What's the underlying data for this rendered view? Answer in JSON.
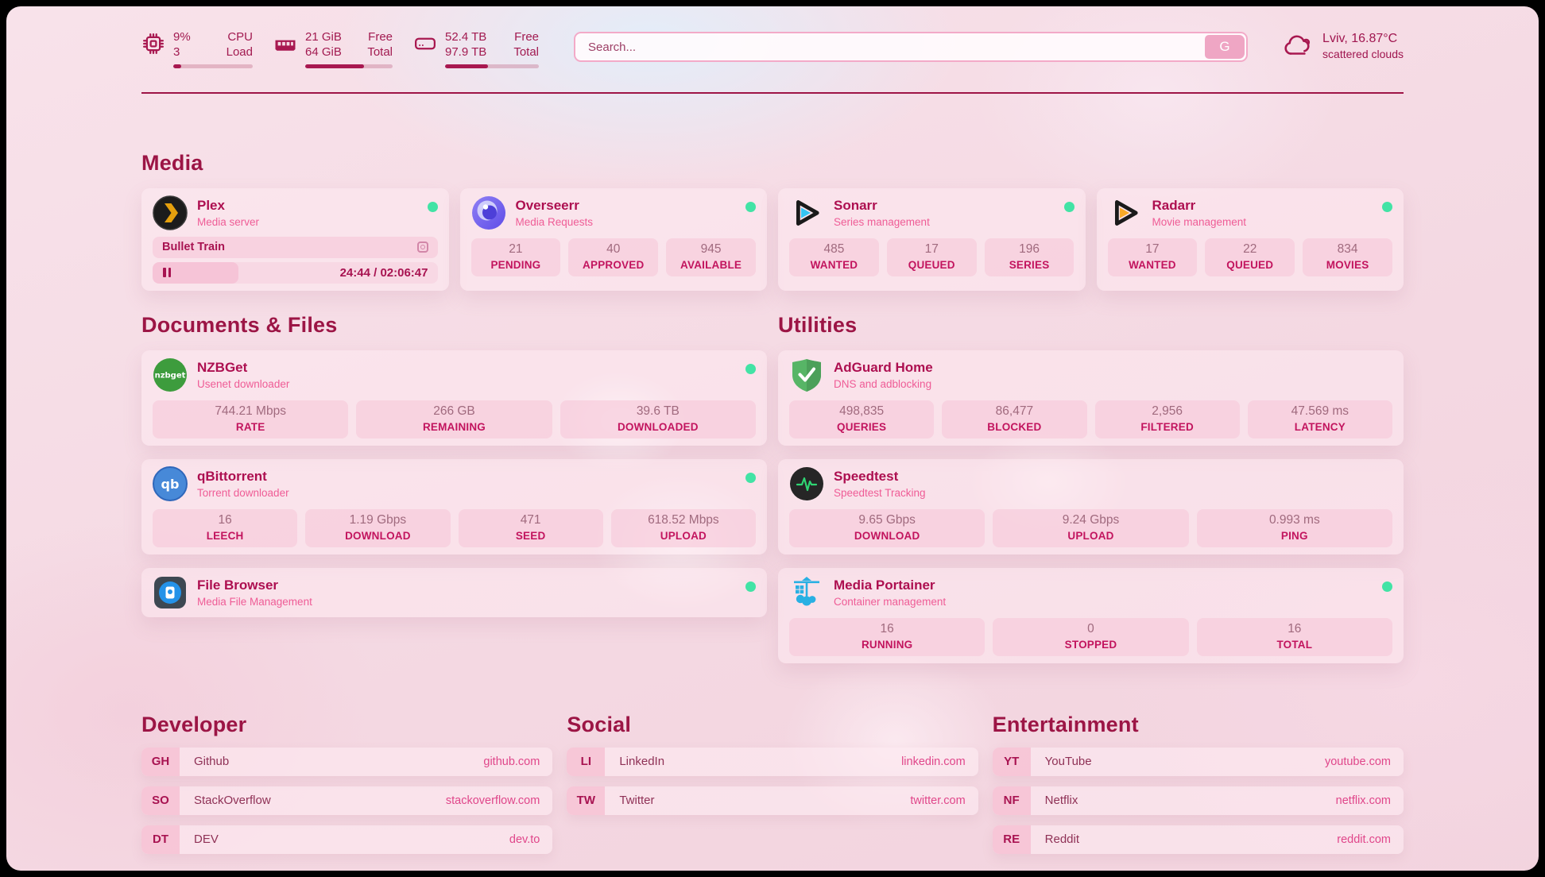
{
  "colors": {
    "accent": "#a81850",
    "status_online": "#42e3a5",
    "link_url": "#e0468a",
    "label": "#c2145e"
  },
  "header": {
    "cpu": {
      "value1": "9%",
      "value2": "3",
      "label1": "CPU",
      "label2": "Load",
      "progress": 10
    },
    "memory": {
      "value1": "21 GiB",
      "value2": "64 GiB",
      "label1": "Free",
      "label2": "Total",
      "progress": 67
    },
    "disk": {
      "value1": "52.4 TB",
      "value2": "97.9 TB",
      "label1": "Free",
      "label2": "Total",
      "progress": 46
    },
    "search": {
      "placeholder": "Search...",
      "button_label": "G"
    },
    "weather": {
      "location": "Lviv, 16.87°C",
      "condition": "scattered clouds"
    }
  },
  "media": {
    "title": "Media",
    "plex": {
      "name": "Plex",
      "subtitle": "Media server",
      "now_playing": "Bullet Train",
      "time": "24:44 / 02:06:47"
    },
    "overseerr": {
      "name": "Overseerr",
      "subtitle": "Media Requests",
      "stats": [
        {
          "value": "21",
          "label": "PENDING"
        },
        {
          "value": "40",
          "label": "APPROVED"
        },
        {
          "value": "945",
          "label": "AVAILABLE"
        }
      ]
    },
    "sonarr": {
      "name": "Sonarr",
      "subtitle": "Series management",
      "stats": [
        {
          "value": "485",
          "label": "WANTED"
        },
        {
          "value": "17",
          "label": "QUEUED"
        },
        {
          "value": "196",
          "label": "SERIES"
        }
      ]
    },
    "radarr": {
      "name": "Radarr",
      "subtitle": "Movie management",
      "stats": [
        {
          "value": "17",
          "label": "WANTED"
        },
        {
          "value": "22",
          "label": "QUEUED"
        },
        {
          "value": "834",
          "label": "MOVIES"
        }
      ]
    }
  },
  "documents": {
    "title": "Documents & Files",
    "nzbget": {
      "name": "NZBGet",
      "subtitle": "Usenet downloader",
      "icon_text": "nzbget",
      "stats": [
        {
          "value": "744.21 Mbps",
          "label": "RATE"
        },
        {
          "value": "266 GB",
          "label": "REMAINING"
        },
        {
          "value": "39.6 TB",
          "label": "DOWNLOADED"
        }
      ]
    },
    "qbittorrent": {
      "name": "qBittorrent",
      "subtitle": "Torrent downloader",
      "icon_text": "qb",
      "stats": [
        {
          "value": "16",
          "label": "LEECH"
        },
        {
          "value": "1.19 Gbps",
          "label": "DOWNLOAD"
        },
        {
          "value": "471",
          "label": "SEED"
        },
        {
          "value": "618.52 Mbps",
          "label": "UPLOAD"
        }
      ]
    },
    "filebrowser": {
      "name": "File Browser",
      "subtitle": "Media File Management"
    }
  },
  "utilities": {
    "title": "Utilities",
    "adguard": {
      "name": "AdGuard Home",
      "subtitle": "DNS and adblocking",
      "stats": [
        {
          "value": "498,835",
          "label": "QUERIES"
        },
        {
          "value": "86,477",
          "label": "BLOCKED"
        },
        {
          "value": "2,956",
          "label": "FILTERED"
        },
        {
          "value": "47.569 ms",
          "label": "LATENCY"
        }
      ]
    },
    "speedtest": {
      "name": "Speedtest",
      "subtitle": "Speedtest Tracking",
      "stats": [
        {
          "value": "9.65 Gbps",
          "label": "DOWNLOAD"
        },
        {
          "value": "9.24 Gbps",
          "label": "UPLOAD"
        },
        {
          "value": "0.993 ms",
          "label": "PING"
        }
      ]
    },
    "portainer": {
      "name": "Media Portainer",
      "subtitle": "Container management",
      "stats": [
        {
          "value": "16",
          "label": "RUNNING"
        },
        {
          "value": "0",
          "label": "STOPPED"
        },
        {
          "value": "16",
          "label": "TOTAL"
        }
      ]
    }
  },
  "links": {
    "developer": {
      "title": "Developer",
      "items": [
        {
          "abbr": "GH",
          "name": "Github",
          "url": "github.com"
        },
        {
          "abbr": "SO",
          "name": "StackOverflow",
          "url": "stackoverflow.com"
        },
        {
          "abbr": "DT",
          "name": "DEV",
          "url": "dev.to"
        }
      ]
    },
    "social": {
      "title": "Social",
      "items": [
        {
          "abbr": "LI",
          "name": "LinkedIn",
          "url": "linkedin.com"
        },
        {
          "abbr": "TW",
          "name": "Twitter",
          "url": "twitter.com"
        }
      ]
    },
    "entertainment": {
      "title": "Entertainment",
      "items": [
        {
          "abbr": "YT",
          "name": "YouTube",
          "url": "youtube.com"
        },
        {
          "abbr": "NF",
          "name": "Netflix",
          "url": "netflix.com"
        },
        {
          "abbr": "RE",
          "name": "Reddit",
          "url": "reddit.com"
        }
      ]
    }
  }
}
